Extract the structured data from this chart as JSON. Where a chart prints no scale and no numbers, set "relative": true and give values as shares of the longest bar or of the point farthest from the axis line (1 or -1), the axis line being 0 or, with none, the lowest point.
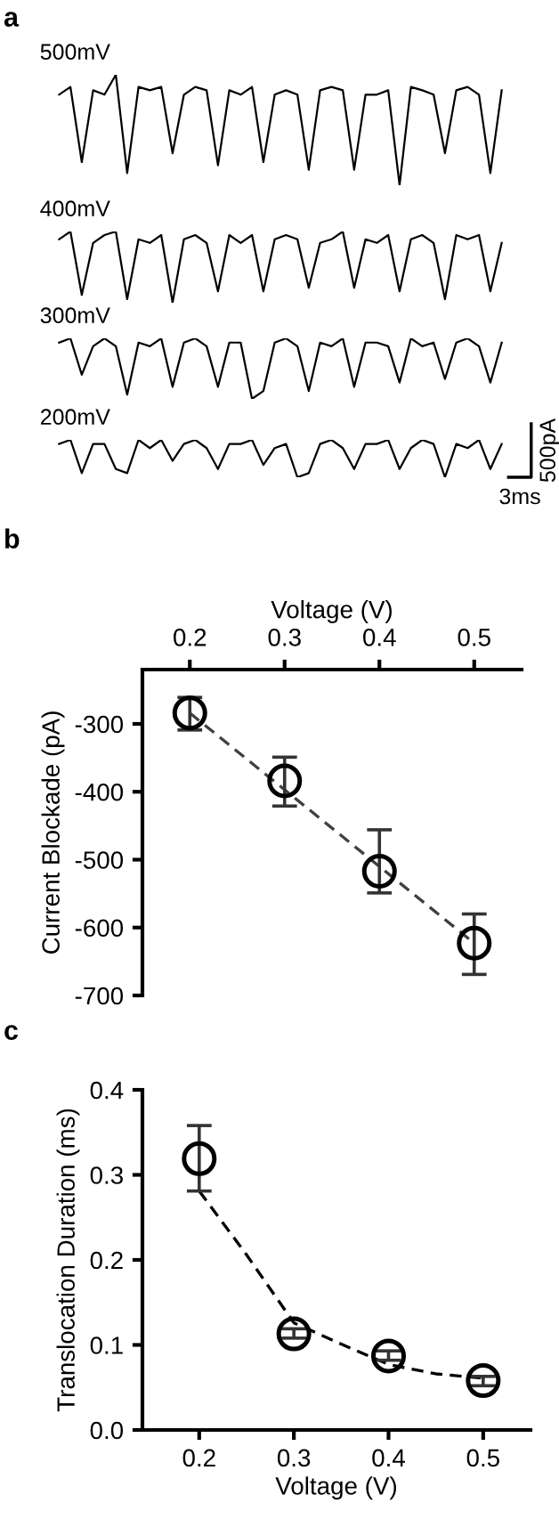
{
  "chart_data": [
    {
      "type": "line",
      "title": "a",
      "relative": true,
      "tick_labels": false,
      "grid": false,
      "categories": [
        null,
        null,
        null,
        null,
        null,
        null,
        null,
        null,
        null,
        null,
        null,
        null,
        null,
        null,
        null,
        null,
        null,
        null,
        null,
        null,
        null,
        null,
        null,
        null,
        null,
        null,
        null,
        null,
        null,
        null,
        null,
        null,
        null,
        null,
        null,
        null,
        null,
        null,
        null,
        null
      ],
      "series": [
        {
          "name": "500mV",
          "color": "#000000",
          "values": [
            0.82,
            0.89,
            0.21,
            0.86,
            0.82,
            1.0,
            0.11,
            0.89,
            0.86,
            0.89,
            0.29,
            0.82,
            0.89,
            0.86,
            0.18,
            0.86,
            0.82,
            0.89,
            0.21,
            0.82,
            0.86,
            0.82,
            0.14,
            0.86,
            0.89,
            0.86,
            0.14,
            0.82,
            0.82,
            0.86,
            0.0,
            0.89,
            0.86,
            0.82,
            0.29,
            0.86,
            0.89,
            0.82,
            0.11,
            0.86
          ]
        }
      ]
    },
    {
      "type": "line",
      "relative": true,
      "tick_labels": false,
      "grid": false,
      "categories": [
        null,
        null,
        null,
        null,
        null,
        null,
        null,
        null,
        null,
        null,
        null,
        null,
        null,
        null,
        null,
        null,
        null,
        null,
        null,
        null,
        null,
        null,
        null,
        null,
        null,
        null,
        null,
        null,
        null,
        null,
        null,
        null,
        null,
        null,
        null,
        null,
        null,
        null,
        null,
        null
      ],
      "series": [
        {
          "name": "400mV",
          "color": "#000000",
          "values": [
            0.89,
            1.0,
            0.11,
            0.84,
            0.95,
            1.0,
            0.05,
            0.89,
            0.84,
            0.95,
            0.0,
            0.89,
            0.95,
            0.84,
            0.16,
            0.95,
            0.84,
            0.95,
            0.16,
            0.89,
            0.95,
            0.89,
            0.21,
            0.84,
            0.89,
            1.0,
            0.21,
            0.89,
            0.84,
            0.95,
            0.16,
            0.89,
            0.95,
            0.84,
            0.05,
            0.95,
            0.89,
            0.95,
            0.16,
            0.84
          ]
        }
      ]
    },
    {
      "type": "line",
      "relative": true,
      "tick_labels": false,
      "grid": false,
      "categories": [
        null,
        null,
        null,
        null,
        null,
        null,
        null,
        null,
        null,
        null,
        null,
        null,
        null,
        null,
        null,
        null,
        null,
        null,
        null,
        null,
        null,
        null,
        null,
        null,
        null,
        null,
        null,
        null,
        null,
        null,
        null,
        null,
        null,
        null,
        null,
        null,
        null,
        null,
        null,
        null
      ],
      "series": [
        {
          "name": "300mV",
          "color": "#000000",
          "values": [
            0.93,
            1.0,
            0.4,
            0.87,
            1.0,
            0.87,
            0.07,
            0.93,
            0.87,
            1.0,
            0.2,
            0.93,
            1.0,
            0.87,
            0.2,
            0.93,
            0.93,
            0.0,
            0.13,
            0.93,
            1.0,
            0.87,
            0.13,
            0.93,
            0.87,
            1.0,
            0.2,
            0.93,
            0.93,
            0.87,
            0.27,
            1.0,
            0.87,
            0.93,
            0.33,
            0.93,
            1.0,
            0.87,
            0.27,
            0.93
          ]
        }
      ]
    },
    {
      "type": "line",
      "relative": true,
      "tick_labels": false,
      "grid": false,
      "categories": [
        null,
        null,
        null,
        null,
        null,
        null,
        null,
        null,
        null,
        null,
        null,
        null,
        null,
        null,
        null,
        null,
        null,
        null,
        null,
        null,
        null,
        null,
        null,
        null,
        null,
        null,
        null,
        null,
        null,
        null,
        null,
        null,
        null,
        null,
        null,
        null,
        null,
        null,
        null,
        null
      ],
      "series": [
        {
          "name": "200mV",
          "color": "#000000",
          "values": [
            0.89,
            1.0,
            0.11,
            0.89,
            0.89,
            0.22,
            0.11,
            1.0,
            0.78,
            1.0,
            0.44,
            0.89,
            1.0,
            0.78,
            0.22,
            0.89,
            0.89,
            1.0,
            0.33,
            0.78,
            0.89,
            0.0,
            0.11,
            0.89,
            1.0,
            0.78,
            0.22,
            0.89,
            0.89,
            1.0,
            0.22,
            0.78,
            1.0,
            0.89,
            0.0,
            0.89,
            0.78,
            1.0,
            0.22,
            0.89
          ]
        }
      ],
      "annotations": [
        "500pA",
        "3ms"
      ]
    },
    {
      "type": "scatter",
      "title": "b",
      "xlabel": "Voltage (V)",
      "ylabel": "Current Blockade (pA)",
      "xlim": [
        0.15,
        0.55
      ],
      "xticks": [
        0.2,
        0.3,
        0.4,
        0.5
      ],
      "ylim": [
        -700,
        -220
      ],
      "yticks": [
        -300,
        -400,
        -500,
        -600,
        -700
      ],
      "grid": false,
      "series": [
        {
          "type": "line",
          "color": "#404040",
          "line_style": "dashed",
          "marker": "none",
          "x": [
            0.2,
            0.5
          ],
          "values": [
            -284,
            -623
          ]
        },
        {
          "type": "scatter",
          "color": "#000000",
          "marker": "circle",
          "x": [
            0.2,
            0.3,
            0.4,
            0.5
          ],
          "values": [
            -284,
            -384,
            -517,
            -623
          ],
          "errors": [
            [
              -309,
              -261
            ],
            [
              -421,
              -349
            ],
            [
              -549,
              -456
            ],
            [
              -669,
              -580
            ]
          ]
        }
      ]
    },
    {
      "type": "scatter",
      "title": "c",
      "xlabel": "Voltage (V)",
      "ylabel": "Translocation Duration (ms)",
      "xlim": [
        0.14,
        0.55
      ],
      "xticks": [
        0.2,
        0.3,
        0.4,
        0.5
      ],
      "ylim": [
        0,
        0.4
      ],
      "yticks": [
        {
          "value": 0,
          "label": "0.0"
        },
        0.1,
        0.2,
        0.3,
        0.4
      ],
      "grid": false,
      "series": [
        {
          "type": "line",
          "color": "#000000",
          "line_style": "dashed",
          "marker": "none",
          "x": [
            0.2,
            0.25,
            0.3,
            0.35,
            0.4,
            0.45,
            0.5
          ],
          "values": [
            0.281,
            0.206,
            0.126,
            0.101,
            0.077,
            0.066,
            0.061
          ]
        },
        {
          "type": "scatter",
          "color": "#000000",
          "marker": "circle",
          "x": [
            0.2,
            0.3,
            0.4,
            0.5
          ],
          "values": [
            0.319,
            0.113,
            0.087,
            0.058
          ],
          "errors": [
            [
              0.281,
              0.358
            ],
            [
              0.108,
              0.119
            ],
            [
              0.082,
              0.093
            ],
            [
              0.052,
              0.063
            ]
          ]
        }
      ]
    }
  ]
}
